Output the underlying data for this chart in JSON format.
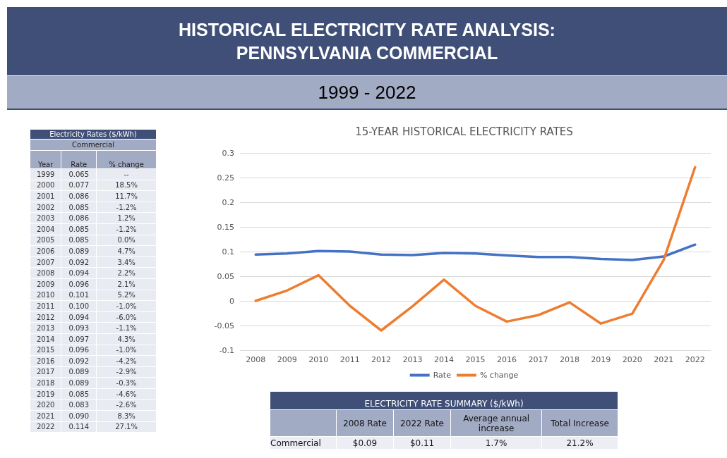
{
  "chart_data": {
    "type": "line",
    "title": "15-YEAR HISTORICAL ELECTRICITY RATES",
    "categories": [
      "2008",
      "2009",
      "2010",
      "2011",
      "2012",
      "2013",
      "2014",
      "2015",
      "2016",
      "2017",
      "2018",
      "2019",
      "2020",
      "2021",
      "2022"
    ],
    "series": [
      {
        "name": "Rate",
        "color": "#4472c4",
        "values": [
          0.094,
          0.096,
          0.101,
          0.1,
          0.094,
          0.093,
          0.097,
          0.096,
          0.092,
          0.089,
          0.089,
          0.085,
          0.083,
          0.09,
          0.114
        ]
      },
      {
        "name": "% change",
        "color": "#ed7d31",
        "values": [
          0.0,
          0.021,
          0.052,
          -0.01,
          -0.06,
          -0.011,
          0.043,
          -0.01,
          -0.042,
          -0.029,
          -0.003,
          -0.046,
          -0.026,
          0.083,
          0.271
        ]
      }
    ],
    "ylim": [
      -0.1,
      0.3
    ],
    "yticks": [
      -0.1,
      -0.05,
      0,
      0.05,
      0.1,
      0.15,
      0.2,
      0.25,
      0.3
    ],
    "grid": "y",
    "legend": "bottom",
    "marker": "none",
    "line_style": "solid",
    "annotations": [
      "HISTORICAL ELECTRICITY RATE ANALYSIS: PENNSYLVANIA COMMERCIAL",
      "1999 - 2022",
      "Electricity Rates ($/kWh)",
      "Commercial",
      "Year",
      "Rate",
      "% change",
      "1999",
      "0.065",
      "--",
      "2000",
      "0.077",
      "18.5%",
      "2001",
      "0.086",
      "11.7%",
      "2002",
      "0.085",
      "-1.2%",
      "2003",
      "0.086",
      "1.2%",
      "2004",
      "0.085",
      "-1.2%",
      "2005",
      "0.085",
      "0.0%",
      "2006",
      "0.089",
      "4.7%",
      "2007",
      "0.092",
      "3.4%",
      "2008",
      "0.094",
      "2.2%",
      "2009",
      "0.096",
      "2.1%",
      "2010",
      "0.101",
      "5.2%",
      "2011",
      "0.100",
      "-1.0%",
      "2012",
      "0.094",
      "-6.0%",
      "2013",
      "0.093",
      "-1.1%",
      "2014",
      "0.097",
      "4.3%",
      "2015",
      "0.096",
      "-1.0%",
      "2016",
      "0.092",
      "-4.2%",
      "2017",
      "0.089",
      "-2.9%",
      "2018",
      "0.089",
      "-0.3%",
      "2019",
      "0.085",
      "-4.6%",
      "2020",
      "0.083",
      "-2.6%",
      "2021",
      "0.090",
      "8.3%",
      "2022",
      "0.114",
      "27.1%",
      "ELECTRICITY RATE SUMMARY ($/kWh)",
      "2008 Rate",
      "2022 Rate",
      "Average annual increase",
      "Total Increase",
      "Commercial",
      "$0.09",
      "$0.11",
      "1.7%",
      "21.2%"
    ]
  }
}
